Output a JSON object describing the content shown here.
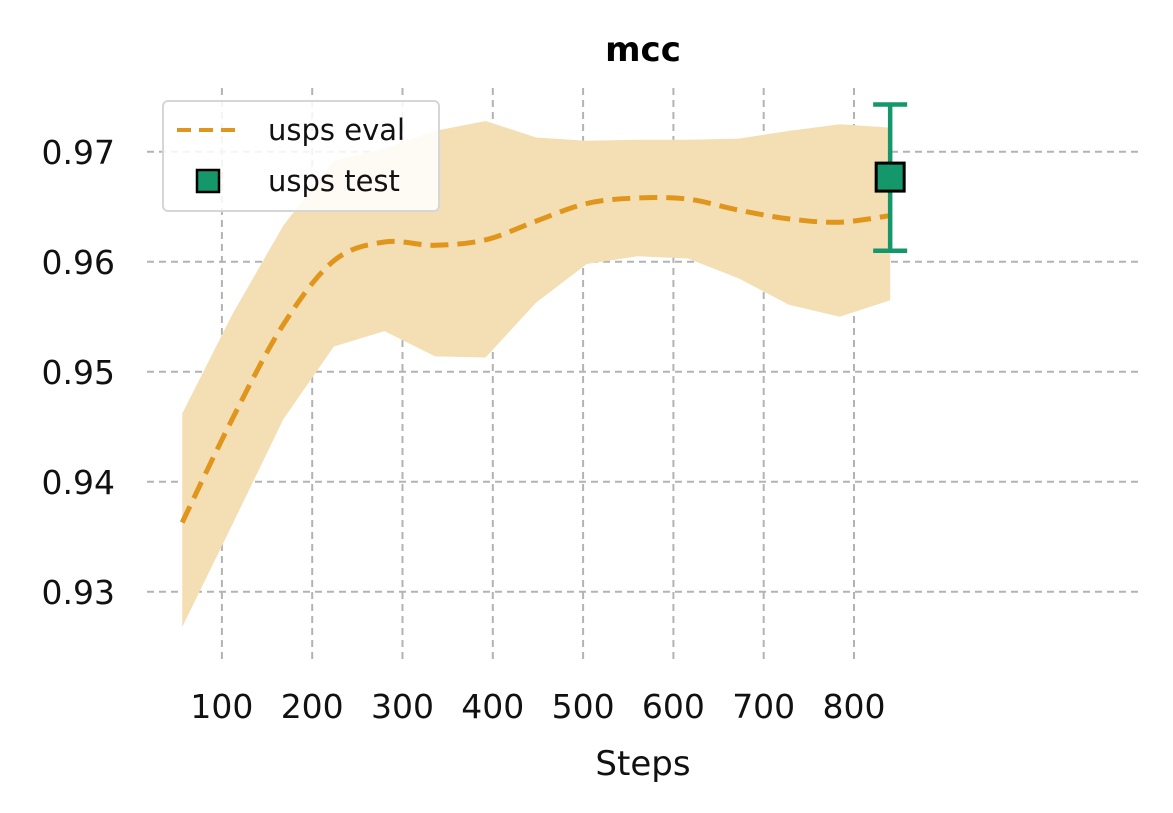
{
  "chart_data": {
    "type": "line",
    "title": "mcc",
    "xlabel": "Steps",
    "ylabel": "",
    "xlim": [
      17,
      1120
    ],
    "ylim": [
      0.9238,
      0.9758
    ],
    "grid": true,
    "legend_position": "top-left",
    "x_ticks": [
      100,
      200,
      300,
      400,
      500,
      600,
      700,
      800
    ],
    "x_tick_labels": [
      "100",
      "200",
      "300",
      "400",
      "500",
      "600",
      "700",
      "800"
    ],
    "y_ticks": [
      0.93,
      0.94,
      0.95,
      0.96,
      0.97
    ],
    "y_tick_labels": [
      "0.93",
      "0.94",
      "0.95",
      "0.96",
      "0.97"
    ],
    "series": [
      {
        "name": "usps eval",
        "kind": "line",
        "style": "dashed",
        "color": "#e0951d",
        "band_color": "#f3dfb3",
        "x": [
          56,
          112,
          168,
          224,
          280,
          336,
          392,
          448,
          504,
          560,
          616,
          672,
          728,
          784,
          840
        ],
        "y": [
          0.9363,
          0.9458,
          0.9543,
          0.9601,
          0.9618,
          0.9615,
          0.962,
          0.9637,
          0.9653,
          0.9658,
          0.9657,
          0.9647,
          0.9639,
          0.9636,
          0.9642
        ],
        "lower": [
          0.9268,
          0.9362,
          0.9457,
          0.9523,
          0.9537,
          0.9514,
          0.9513,
          0.9563,
          0.9598,
          0.9605,
          0.9603,
          0.9585,
          0.9561,
          0.955,
          0.9565
        ],
        "upper": [
          0.9462,
          0.9553,
          0.9633,
          0.9692,
          0.9703,
          0.9719,
          0.9728,
          0.9713,
          0.971,
          0.9711,
          0.9711,
          0.9712,
          0.9719,
          0.9725,
          0.9722
        ]
      },
      {
        "name": "usps test",
        "kind": "point_errorbar",
        "color": "#14976a",
        "edge_color": "#000000",
        "x": [
          840
        ],
        "y": [
          0.9677
        ],
        "y_err_low": [
          0.961
        ],
        "y_err_high": [
          0.9743
        ]
      }
    ]
  }
}
